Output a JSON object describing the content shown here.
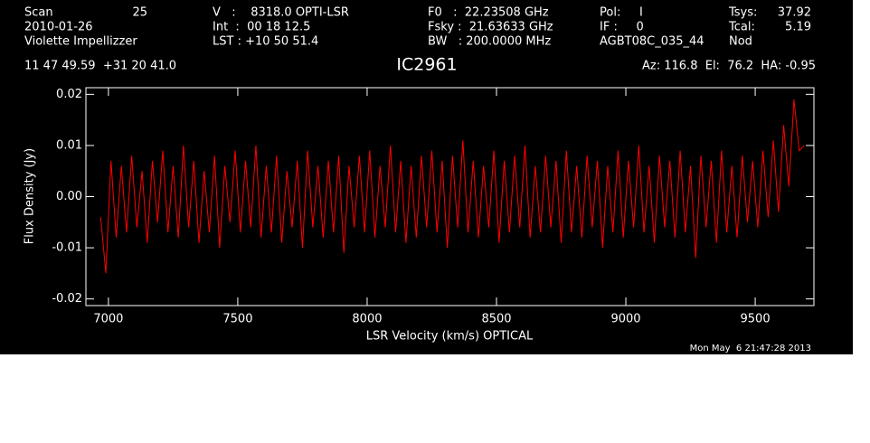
{
  "chart_data": {
    "type": "line",
    "title": "IC2961",
    "header": {
      "scan": "Scan",
      "scan_number": "25",
      "date": "2010-01-26",
      "observer": "Violette Impellizzer",
      "velocity": "V   :    8318.0 OPTI-LSR",
      "int": "Int  :  00 18 12.5",
      "lst": "LST : +10 50 51.4",
      "f0": "F0   :  22.23508 GHz",
      "fsky": "Fsky :  21.63633 GHz",
      "bw": "BW   : 200.0000 MHz",
      "pol": "Pol:     I",
      "if": "IF :     0",
      "project": "AGBT08C_035_44",
      "tsys_label": "Tsys:",
      "tsys": "37.92",
      "tcal_label": "Tcal:",
      "tcal": "5.19",
      "procedure": "Nod",
      "coords": "11 47 49.59  +31 20 41.0",
      "az_el_ha": "Az: 116.8  El:  76.2  HA: -0.95"
    },
    "xlabel": "LSR Velocity (km/s) OPTICAL",
    "ylabel": "Flux Density (Jy)",
    "timestamp": "Mon May  6 21:47:28 2013",
    "color": "#ff0000",
    "xlim": [
      6913,
      9727
    ],
    "ylim": [
      -0.0213,
      0.0213
    ],
    "xticks": [
      7000,
      7500,
      8000,
      8500,
      9000,
      9500
    ],
    "yticks": [
      -0.02,
      -0.01,
      {
        "value": 0,
        "label": "0.00"
      },
      0.01,
      0.02
    ],
    "x": [
      6970,
      6990,
      7010,
      7030,
      7050,
      7070,
      7090,
      7110,
      7130,
      7150,
      7170,
      7190,
      7210,
      7230,
      7250,
      7270,
      7290,
      7310,
      7330,
      7350,
      7370,
      7390,
      7410,
      7430,
      7450,
      7470,
      7490,
      7510,
      7530,
      7550,
      7570,
      7590,
      7610,
      7630,
      7650,
      7670,
      7690,
      7710,
      7730,
      7750,
      7770,
      7790,
      7810,
      7830,
      7850,
      7870,
      7890,
      7910,
      7930,
      7950,
      7970,
      7990,
      8010,
      8030,
      8050,
      8070,
      8090,
      8110,
      8130,
      8150,
      8170,
      8190,
      8210,
      8230,
      8250,
      8270,
      8290,
      8310,
      8330,
      8350,
      8370,
      8390,
      8410,
      8430,
      8450,
      8470,
      8490,
      8510,
      8530,
      8550,
      8570,
      8590,
      8610,
      8630,
      8650,
      8670,
      8690,
      8710,
      8730,
      8750,
      8770,
      8790,
      8810,
      8830,
      8850,
      8870,
      8890,
      8910,
      8930,
      8950,
      8970,
      8990,
      9010,
      9030,
      9050,
      9070,
      9090,
      9110,
      9130,
      9150,
      9170,
      9190,
      9210,
      9230,
      9250,
      9270,
      9290,
      9310,
      9330,
      9350,
      9370,
      9390,
      9410,
      9430,
      9450,
      9470,
      9490,
      9510,
      9530,
      9550,
      9570,
      9590,
      9610,
      9630,
      9650,
      9670,
      9690
    ],
    "values": [
      -0.004,
      -0.015,
      0.007,
      -0.008,
      0.006,
      -0.007,
      0.008,
      -0.006,
      0.005,
      -0.009,
      0.007,
      -0.005,
      0.009,
      -0.007,
      0.006,
      -0.008,
      0.01,
      -0.006,
      0.007,
      -0.009,
      0.005,
      -0.007,
      0.008,
      -0.01,
      0.006,
      -0.005,
      0.009,
      -0.007,
      0.007,
      -0.006,
      0.01,
      -0.008,
      0.006,
      -0.007,
      0.008,
      -0.009,
      0.005,
      -0.006,
      0.007,
      -0.01,
      0.009,
      -0.006,
      0.006,
      -0.008,
      0.007,
      -0.007,
      0.008,
      -0.011,
      0.006,
      -0.006,
      0.008,
      -0.007,
      0.009,
      -0.008,
      0.006,
      -0.006,
      0.01,
      -0.007,
      0.007,
      -0.009,
      0.006,
      -0.008,
      0.008,
      -0.006,
      0.009,
      -0.007,
      0.007,
      -0.01,
      0.008,
      -0.006,
      0.011,
      -0.007,
      0.007,
      -0.008,
      0.006,
      -0.006,
      0.009,
      -0.009,
      0.007,
      -0.007,
      0.008,
      -0.006,
      0.01,
      -0.008,
      0.006,
      -0.007,
      0.008,
      -0.006,
      0.007,
      -0.009,
      0.009,
      -0.007,
      0.006,
      -0.008,
      0.008,
      -0.006,
      0.007,
      -0.01,
      0.006,
      -0.007,
      0.009,
      -0.008,
      0.007,
      -0.006,
      0.01,
      -0.007,
      0.006,
      -0.009,
      0.008,
      -0.006,
      0.007,
      -0.008,
      0.009,
      -0.007,
      0.006,
      -0.012,
      0.008,
      -0.006,
      0.007,
      -0.009,
      0.009,
      -0.007,
      0.006,
      -0.008,
      0.008,
      -0.005,
      0.007,
      -0.006,
      0.009,
      -0.004,
      0.011,
      -0.003,
      0.014,
      0.002,
      0.019,
      0.009,
      0.01
    ]
  }
}
